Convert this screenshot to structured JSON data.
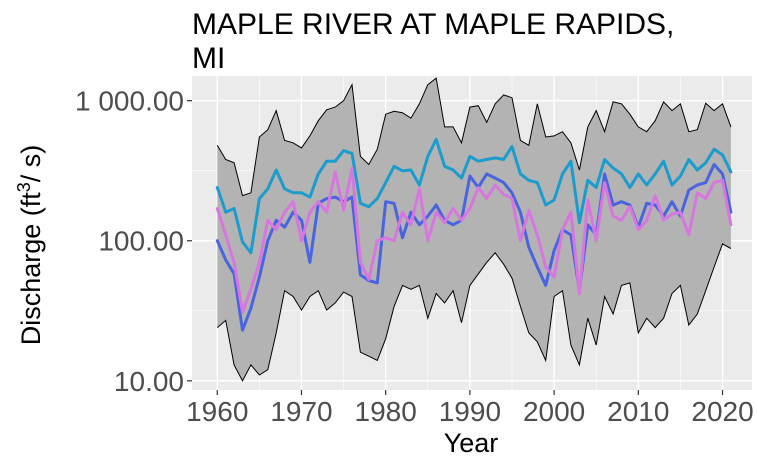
{
  "chart_data": {
    "type": "line",
    "title": [
      "MAPLE RIVER AT MAPLE RAPIDS,",
      "MI"
    ],
    "xlabel": "Year",
    "ylabel": "Discharge (ft³/s)",
    "ylabel_parts": {
      "before": "Discharge (ft",
      "sup": "3",
      "after": "/ s)"
    },
    "y_scale": "log",
    "xlim": [
      1957,
      2023.5
    ],
    "ylim": [
      8.6,
      1500
    ],
    "x_ticks": [
      1960,
      1970,
      1980,
      1990,
      2000,
      2010,
      2020
    ],
    "x_tick_labels": [
      "1960",
      "1970",
      "1980",
      "1990",
      "2000",
      "2010",
      "2020"
    ],
    "y_ticks": [
      10,
      100,
      1000
    ],
    "y_tick_labels": [
      "10.00",
      "100.00",
      "1 000.00"
    ],
    "grid": true,
    "legend": "none",
    "background": "#ebebeb",
    "gridline_color": "#ffffff",
    "colors": {
      "band_fill": "#b3b3b3",
      "band_stroke": "#000000",
      "series_cyan": "#1a9ccc",
      "series_blue": "#4a64e0",
      "series_violet": "#d876e0"
    },
    "x": [
      1960,
      1961,
      1962,
      1963,
      1964,
      1965,
      1966,
      1967,
      1968,
      1969,
      1970,
      1971,
      1972,
      1973,
      1974,
      1975,
      1976,
      1977,
      1978,
      1979,
      1980,
      1981,
      1982,
      1983,
      1984,
      1985,
      1986,
      1987,
      1988,
      1989,
      1990,
      1991,
      1992,
      1993,
      1994,
      1995,
      1996,
      1997,
      1998,
      1999,
      2000,
      2001,
      2002,
      2003,
      2004,
      2005,
      2006,
      2007,
      2008,
      2009,
      2010,
      2011,
      2012,
      2013,
      2014,
      2015,
      2016,
      2017,
      2018,
      2019,
      2020,
      2021
    ],
    "band": {
      "upper": [
        480,
        380,
        360,
        210,
        220,
        550,
        620,
        850,
        520,
        500,
        460,
        560,
        720,
        860,
        900,
        1000,
        1300,
        400,
        350,
        450,
        800,
        840,
        820,
        750,
        950,
        1300,
        1450,
        650,
        650,
        500,
        900,
        920,
        700,
        950,
        1100,
        1050,
        520,
        480,
        950,
        550,
        560,
        600,
        500,
        320,
        650,
        850,
        600,
        980,
        950,
        800,
        650,
        600,
        720,
        980,
        850,
        950,
        600,
        620,
        960,
        850,
        950,
        650
      ],
      "lower": [
        24,
        27,
        13,
        10,
        13,
        11,
        12,
        22,
        44,
        40,
        32,
        40,
        44,
        32,
        36,
        43,
        40,
        16,
        15,
        14,
        20,
        34,
        48,
        45,
        48,
        28,
        42,
        36,
        44,
        26,
        48,
        58,
        70,
        82,
        68,
        54,
        34,
        22,
        19,
        14,
        40,
        44,
        18,
        13,
        28,
        18,
        40,
        30,
        48,
        50,
        22,
        28,
        24,
        28,
        42,
        48,
        25,
        30,
        44,
        65,
        95,
        88
      ]
    },
    "series": [
      {
        "values": [
          240,
          160,
          170,
          98,
          82,
          200,
          235,
          320,
          235,
          220,
          220,
          205,
          300,
          370,
          370,
          440,
          420,
          185,
          175,
          200,
          260,
          340,
          315,
          320,
          250,
          400,
          530,
          340,
          320,
          280,
          400,
          370,
          380,
          390,
          380,
          470,
          300,
          270,
          260,
          180,
          195,
          300,
          370,
          135,
          270,
          240,
          380,
          330,
          300,
          240,
          300,
          250,
          300,
          370,
          250,
          290,
          380,
          320,
          360,
          450,
          410,
          310
        ]
      },
      {
        "values": [
          100,
          73,
          58,
          23,
          33,
          55,
          100,
          140,
          125,
          160,
          140,
          70,
          185,
          200,
          205,
          190,
          205,
          57,
          52,
          50,
          190,
          185,
          105,
          160,
          130,
          150,
          180,
          140,
          130,
          140,
          290,
          240,
          300,
          280,
          260,
          220,
          160,
          90,
          65,
          48,
          85,
          120,
          110,
          44,
          130,
          110,
          300,
          180,
          190,
          180,
          125,
          185,
          180,
          150,
          190,
          150,
          230,
          250,
          260,
          350,
          300,
          160
        ]
      },
      {
        "values": [
          170,
          110,
          70,
          31,
          45,
          70,
          140,
          120,
          160,
          190,
          100,
          160,
          190,
          160,
          310,
          165,
          330,
          70,
          53,
          100,
          105,
          100,
          160,
          130,
          235,
          100,
          160,
          135,
          170,
          140,
          170,
          240,
          200,
          250,
          215,
          200,
          100,
          165,
          110,
          65,
          55,
          120,
          160,
          42,
          195,
          100,
          260,
          150,
          140,
          175,
          120,
          140,
          210,
          140,
          155,
          160,
          110,
          220,
          200,
          260,
          270,
          130
        ]
      }
    ]
  }
}
